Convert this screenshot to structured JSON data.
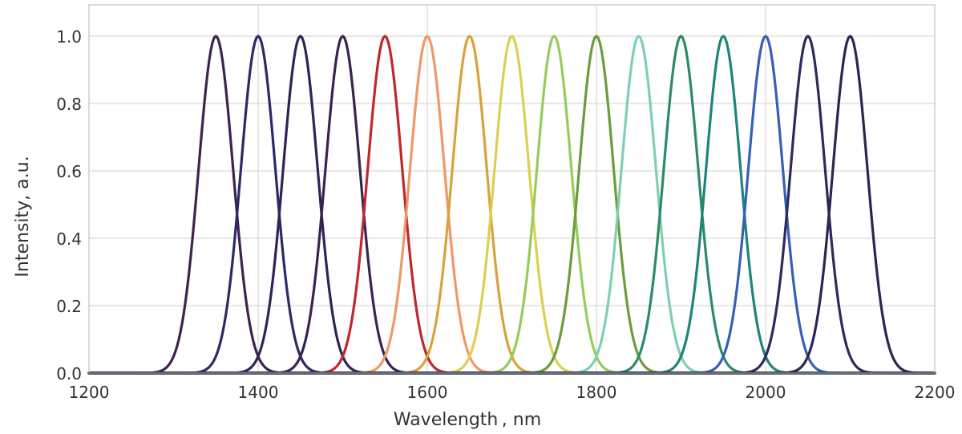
{
  "chart_data": {
    "type": "line",
    "xlabel": "Wavelength , nm",
    "ylabel": "Intensity, a.u.",
    "xlim": [
      1200,
      2200
    ],
    "ylim": [
      0,
      1.05
    ],
    "xticks": [
      1200,
      1400,
      1600,
      1800,
      2000,
      2200
    ],
    "yticks": [
      0.0,
      0.2,
      0.4,
      0.6,
      0.8,
      1.0
    ],
    "xtick_labels": [
      "1200",
      "1400",
      "1600",
      "1800",
      "2000",
      "2200"
    ],
    "ytick_labels": [
      "0.0",
      "0.2",
      "0.4",
      "0.6",
      "0.8",
      "1.0"
    ],
    "grid": true,
    "legend": "none",
    "peak_value": 1.0,
    "fwhm_nm": 48,
    "series": [
      {
        "peak": 1350,
        "color": "#3d2350"
      },
      {
        "peak": 1400,
        "color": "#2c2a66"
      },
      {
        "peak": 1450,
        "color": "#332255"
      },
      {
        "peak": 1500,
        "color": "#3a2350"
      },
      {
        "peak": 1550,
        "color": "#c0272d"
      },
      {
        "peak": 1600,
        "color": "#ee9966"
      },
      {
        "peak": 1650,
        "color": "#d9a23b"
      },
      {
        "peak": 1700,
        "color": "#dbd052"
      },
      {
        "peak": 1750,
        "color": "#95cc5c"
      },
      {
        "peak": 1800,
        "color": "#6a9e3a"
      },
      {
        "peak": 1850,
        "color": "#7fd0b0"
      },
      {
        "peak": 1900,
        "color": "#2c8b62"
      },
      {
        "peak": 1950,
        "color": "#1f8578"
      },
      {
        "peak": 2000,
        "color": "#3560b6"
      },
      {
        "peak": 2050,
        "color": "#2c2a5e"
      },
      {
        "peak": 2100,
        "color": "#2d2550"
      }
    ]
  }
}
